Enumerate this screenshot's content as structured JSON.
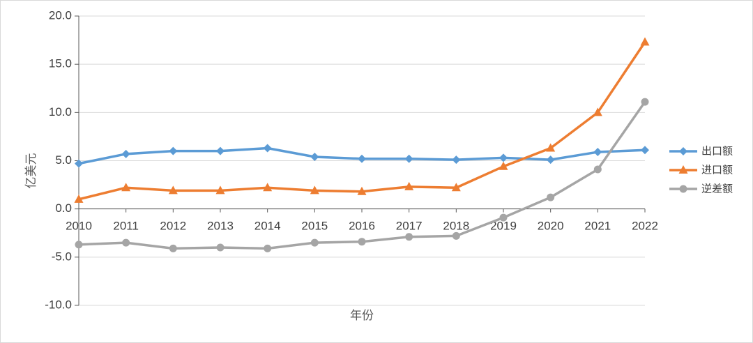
{
  "chart_data": {
    "type": "line",
    "title": "",
    "xlabel": "年份",
    "ylabel": "亿美元",
    "categories": [
      "2010",
      "2011",
      "2012",
      "2013",
      "2014",
      "2015",
      "2016",
      "2017",
      "2018",
      "2019",
      "2020",
      "2021",
      "2022"
    ],
    "ylim": [
      -10,
      20
    ],
    "yticks": [
      "20.0",
      "15.0",
      "10.0",
      "5.0",
      "0.0",
      "-5.0",
      "-10.0"
    ],
    "grid": true,
    "legend_position": "right",
    "series": [
      {
        "name": "出口额",
        "color": "#5b9bd5",
        "marker": "diamond",
        "values": [
          4.7,
          5.7,
          6.0,
          6.0,
          6.3,
          5.4,
          5.2,
          5.2,
          5.1,
          5.3,
          5.1,
          5.9,
          6.1
        ]
      },
      {
        "name": "进口额",
        "color": "#ed7d31",
        "marker": "triangle",
        "values": [
          1.0,
          2.2,
          1.9,
          1.9,
          2.2,
          1.9,
          1.8,
          2.3,
          2.2,
          4.4,
          6.3,
          10.0,
          17.3
        ]
      },
      {
        "name": "逆差额",
        "color": "#a5a5a5",
        "marker": "circle",
        "values": [
          -3.7,
          -3.5,
          -4.1,
          -4.0,
          -4.1,
          -3.5,
          -3.4,
          -2.9,
          -2.8,
          -0.9,
          1.2,
          4.1,
          11.1
        ]
      }
    ]
  }
}
